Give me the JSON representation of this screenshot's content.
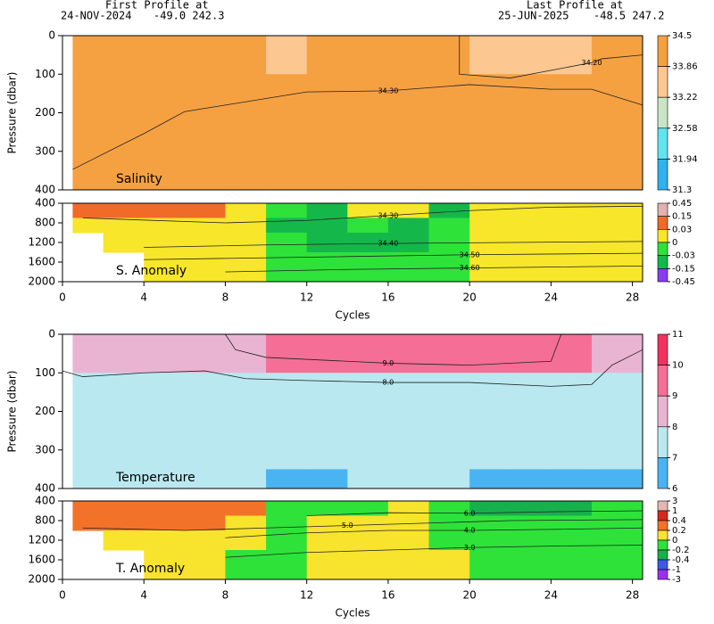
{
  "header": {
    "first_label": "First Profile at",
    "first_date": "24-NOV-2024",
    "first_pos": "-49.0  242.3",
    "last_label": "Last Profile at",
    "last_date": "25-JUN-2025",
    "last_pos": "-48.5  247.2"
  },
  "chart_data": [
    {
      "type": "heatmap",
      "label": "Salinity",
      "ylabel": "Pressure (dbar)",
      "xlim": [
        0,
        28.5
      ],
      "ylim": [
        400,
        0
      ],
      "yticks": [
        0,
        100,
        200,
        300,
        400
      ],
      "xbins": [
        0.5,
        2,
        4,
        6,
        8,
        10,
        12,
        14,
        16,
        18,
        20,
        22,
        24,
        26,
        28.5
      ],
      "ybins": [
        0,
        100,
        400
      ],
      "z": [
        [
          34.3,
          34.3,
          34.3,
          34.3,
          34.3,
          33.8,
          34.3,
          34.3,
          34.3,
          34.3,
          33.8,
          33.8,
          33.8,
          34.3
        ],
        [
          34.3,
          34.3,
          34.3,
          34.3,
          34.3,
          34.3,
          34.3,
          34.3,
          34.3,
          34.3,
          34.3,
          34.3,
          34.3,
          34.3
        ]
      ],
      "colorbar": {
        "ticks": [
          34.5,
          33.86,
          33.22,
          32.58,
          31.94,
          31.3
        ],
        "colors": [
          "#f5a142",
          "#fcc790",
          "#c9e6c4",
          "#62e3f0",
          "#2fb2ee"
        ]
      },
      "contours": [
        {
          "level": 34.3,
          "label": "34.30",
          "points": [
            [
              0.5,
              347
            ],
            [
              4,
              254
            ],
            [
              6,
              197
            ],
            [
              8,
              180
            ],
            [
              12,
              146
            ],
            [
              16,
              143
            ],
            [
              20,
              127
            ],
            [
              24,
              139
            ],
            [
              26,
              139
            ],
            [
              28.5,
              180
            ]
          ]
        },
        {
          "level": 34.2,
          "label": "34.20",
          "points": [
            [
              19.5,
              0
            ],
            [
              19.5,
              100
            ],
            [
              22,
              110
            ],
            [
              26,
              70
            ],
            [
              26.5,
              60
            ],
            [
              28.5,
              50
            ]
          ]
        }
      ]
    },
    {
      "type": "heatmap",
      "label": "S. Anomaly",
      "xlabel": "Cycles",
      "xlim": [
        0,
        28.5
      ],
      "ylim": [
        2000,
        400
      ],
      "yticks": [
        400,
        800,
        1200,
        1600,
        2000
      ],
      "xticks": [
        0,
        4,
        8,
        12,
        16,
        20,
        24,
        28
      ],
      "xbins": [
        0.5,
        2,
        4,
        6,
        8,
        10,
        12,
        14,
        16,
        18,
        20,
        22,
        24,
        26,
        28.5
      ],
      "ybins": [
        400,
        700,
        1000,
        1400,
        2000
      ],
      "z": [
        [
          0.1,
          0.1,
          0.1,
          0.05,
          0.02,
          -0.02,
          -0.05,
          0.02,
          0.02,
          -0.05,
          0.02,
          0.01,
          0.01,
          0.01
        ],
        [
          0.02,
          0.02,
          0.02,
          0.02,
          0.01,
          -0.05,
          -0.05,
          -0.02,
          -0.05,
          -0.02,
          0.01,
          0.01,
          0.01,
          0.01
        ],
        [
          null,
          0.01,
          0.01,
          0.01,
          0.01,
          -0.02,
          -0.05,
          -0.05,
          -0.05,
          -0.02,
          0.01,
          0.01,
          0.01,
          0.01
        ],
        [
          null,
          null,
          0.01,
          0.01,
          0.01,
          -0.02,
          -0.02,
          -0.02,
          -0.02,
          -0.02,
          0.01,
          0.01,
          0.01,
          0.01
        ]
      ],
      "colorbar": {
        "ticks": [
          0.45,
          0.15,
          0.03,
          0,
          -0.03,
          -0.15,
          -0.45
        ],
        "colors": [
          "#e2b2b0",
          "#f06a28",
          "#f7e62a",
          "#2ee23a",
          "#14b84a",
          "#8a3cf0"
        ]
      },
      "contours": [
        {
          "level": 34.3,
          "label": "34.30",
          "points": [
            [
              1,
              700
            ],
            [
              8,
              800
            ],
            [
              12,
              750
            ],
            [
              16,
              650
            ],
            [
              20,
              550
            ],
            [
              24,
              480
            ],
            [
              28.5,
              460
            ]
          ]
        },
        {
          "level": 34.4,
          "label": "34.40",
          "points": [
            [
              4,
              1300
            ],
            [
              10,
              1250
            ],
            [
              16,
              1220
            ],
            [
              22,
              1200
            ],
            [
              28.5,
              1180
            ]
          ]
        },
        {
          "level": 34.5,
          "label": "34.50",
          "points": [
            [
              4,
              1550
            ],
            [
              12,
              1500
            ],
            [
              20,
              1450
            ],
            [
              28.5,
              1420
            ]
          ]
        },
        {
          "level": 34.6,
          "label": "34.60",
          "points": [
            [
              8,
              1800
            ],
            [
              14,
              1750
            ],
            [
              20,
              1720
            ],
            [
              28.5,
              1680
            ]
          ]
        }
      ]
    },
    {
      "type": "heatmap",
      "label": "Temperature",
      "ylabel": "Pressure (dbar)",
      "xlim": [
        0,
        28.5
      ],
      "ylim": [
        400,
        0
      ],
      "yticks": [
        0,
        100,
        200,
        300,
        400
      ],
      "xbins": [
        0.5,
        2,
        4,
        6,
        8,
        10,
        12,
        14,
        16,
        18,
        20,
        22,
        24,
        26,
        28.5
      ],
      "ybins": [
        0,
        100,
        250,
        350,
        400
      ],
      "z": [
        [
          8.5,
          8.5,
          8.5,
          8.5,
          8.5,
          9.5,
          9.5,
          9.5,
          9.5,
          9.5,
          9.5,
          9.5,
          9.5,
          8.5
        ],
        [
          7.6,
          7.6,
          7.6,
          7.6,
          7.6,
          7.6,
          7.6,
          7.6,
          7.6,
          7.6,
          7.6,
          7.6,
          7.6,
          7.6
        ],
        [
          7.3,
          7.3,
          7.3,
          7.3,
          7.3,
          7.3,
          7.3,
          7.3,
          7.3,
          7.3,
          7.3,
          7.3,
          7.3,
          7.3
        ],
        [
          7.3,
          7.3,
          7.3,
          7.3,
          7.3,
          6.8,
          6.8,
          7.3,
          7.3,
          7.3,
          6.8,
          6.8,
          6.8,
          6.8
        ]
      ],
      "colorbar": {
        "ticks": [
          11,
          10,
          9,
          8,
          7,
          6
        ],
        "colors": [
          "#f2325e",
          "#f56e96",
          "#e9b4d2",
          "#b9e8f0",
          "#4ab4f2"
        ]
      },
      "contours": [
        {
          "level": 9.0,
          "label": "9.0",
          "points": [
            [
              8,
              0
            ],
            [
              8.5,
              40
            ],
            [
              10,
              60
            ],
            [
              14,
              70
            ],
            [
              16,
              75
            ],
            [
              20,
              80
            ],
            [
              24,
              70
            ],
            [
              24.5,
              0
            ]
          ]
        },
        {
          "level": 8.0,
          "label": "8.0",
          "points": [
            [
              0,
              95
            ],
            [
              1,
              110
            ],
            [
              4,
              100
            ],
            [
              7,
              95
            ],
            [
              9,
              115
            ],
            [
              12,
              120
            ],
            [
              16,
              125
            ],
            [
              20,
              125
            ],
            [
              24,
              135
            ],
            [
              26,
              130
            ],
            [
              27,
              80
            ],
            [
              28.5,
              40
            ]
          ]
        }
      ]
    },
    {
      "type": "heatmap",
      "label": "T. Anomaly",
      "xlabel": "Cycles",
      "xlim": [
        0,
        28.5
      ],
      "ylim": [
        2000,
        400
      ],
      "yticks": [
        400,
        800,
        1200,
        1600,
        2000
      ],
      "xticks": [
        0,
        4,
        8,
        12,
        16,
        20,
        24,
        28
      ],
      "xbins": [
        0.5,
        2,
        4,
        6,
        8,
        10,
        12,
        14,
        16,
        18,
        20,
        22,
        24,
        26,
        28.5
      ],
      "ybins": [
        400,
        700,
        1000,
        1400,
        2000
      ],
      "z": [
        [
          0.3,
          0.3,
          0.3,
          0.3,
          0.3,
          -0.1,
          -0.1,
          -0.1,
          0.1,
          -0.1,
          -0.3,
          -0.3,
          -0.3,
          -0.1
        ],
        [
          0.3,
          0.3,
          0.3,
          0.3,
          0.1,
          -0.1,
          0.1,
          0.1,
          0.1,
          -0.1,
          -0.1,
          -0.1,
          -0.1,
          -0.1
        ],
        [
          null,
          0.1,
          0.1,
          0.1,
          0.1,
          -0.1,
          0.1,
          0.1,
          0.1,
          -0.1,
          -0.1,
          -0.1,
          -0.1,
          -0.1
        ],
        [
          null,
          null,
          0.1,
          0.1,
          -0.1,
          -0.1,
          0.1,
          0.1,
          0.1,
          0.1,
          -0.1,
          -0.1,
          -0.1,
          -0.1
        ]
      ],
      "colorbar": {
        "ticks": [
          3,
          1,
          0.4,
          0.2,
          0,
          -0.2,
          -0.4,
          -1,
          -3
        ],
        "colors": [
          "#e6b6b4",
          "#d42a1e",
          "#f3722a",
          "#f8e42c",
          "#2ee23a",
          "#16b04c",
          "#3c5ae6",
          "#9a30f0"
        ]
      },
      "contours": [
        {
          "level": 6.0,
          "label": "6.0",
          "points": [
            [
              12,
              700
            ],
            [
              16,
              640
            ],
            [
              20,
              650
            ],
            [
              24,
              620
            ],
            [
              28.5,
              600
            ]
          ]
        },
        {
          "level": 5.0,
          "label": "5.0",
          "points": [
            [
              1,
              950
            ],
            [
              6,
              1000
            ],
            [
              10,
              950
            ],
            [
              14,
              900
            ],
            [
              18,
              850
            ],
            [
              22,
              800
            ],
            [
              28.5,
              780
            ]
          ]
        },
        {
          "level": 4.0,
          "label": "4.0",
          "points": [
            [
              8,
              1150
            ],
            [
              12,
              1050
            ],
            [
              16,
              1000
            ],
            [
              20,
              1000
            ],
            [
              24,
              980
            ],
            [
              28.5,
              950
            ]
          ]
        },
        {
          "level": 3.0,
          "label": "3.0",
          "points": [
            [
              8,
              1550
            ],
            [
              12,
              1450
            ],
            [
              16,
              1400
            ],
            [
              20,
              1350
            ],
            [
              24,
              1320
            ],
            [
              28.5,
              1300
            ]
          ]
        }
      ]
    }
  ]
}
